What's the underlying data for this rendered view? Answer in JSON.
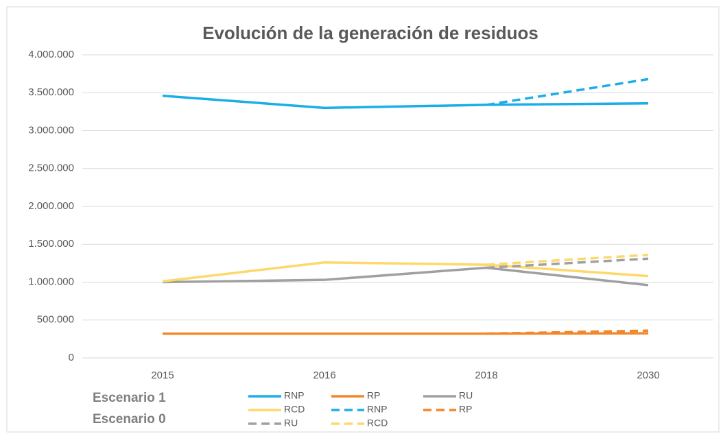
{
  "chart_data": {
    "type": "line",
    "title": "Evolución de la generación de residuos",
    "categories": [
      "2015",
      "2016",
      "2018",
      "2030"
    ],
    "ylim": [
      0,
      4000000
    ],
    "yticks": [
      0,
      {
        "value": 500000,
        "label": "500.000"
      },
      {
        "value": 1000000,
        "label": "1.000.000"
      },
      {
        "value": 1500000,
        "label": "1.500.000"
      },
      {
        "value": 2000000,
        "label": "2.000.000"
      },
      {
        "value": 2500000,
        "label": "2.500.000"
      },
      {
        "value": 3000000,
        "label": "3.000.000"
      },
      {
        "value": 3500000,
        "label": "3.500.000"
      },
      {
        "value": 4000000,
        "label": "4.000.000"
      }
    ],
    "grid": true,
    "legend_groups": [
      "Escenario 1",
      "Escenario 0"
    ],
    "series": [
      {
        "name": "RNP",
        "color": "#1aaee9",
        "dashed": false,
        "values": [
          3460000,
          3300000,
          3340000,
          3360000
        ]
      },
      {
        "name": "RP",
        "color": "#f4862a",
        "dashed": false,
        "values": [
          320000,
          320000,
          320000,
          325000
        ]
      },
      {
        "name": "RU",
        "color": "#a0a0a0",
        "dashed": false,
        "values": [
          1000000,
          1030000,
          1190000,
          960000
        ]
      },
      {
        "name": "RCD",
        "color": "#fdd86a",
        "dashed": false,
        "values": [
          1010000,
          1260000,
          1230000,
          1080000
        ]
      },
      {
        "name": "RNP",
        "color": "#1aaee9",
        "dashed": true,
        "values": [
          null,
          null,
          3340000,
          3680000
        ]
      },
      {
        "name": "RP",
        "color": "#f4862a",
        "dashed": true,
        "values": [
          null,
          null,
          320000,
          360000
        ]
      },
      {
        "name": "RU",
        "color": "#a0a0a0",
        "dashed": true,
        "values": [
          null,
          null,
          1190000,
          1310000
        ]
      },
      {
        "name": "RCD",
        "color": "#fdd86a",
        "dashed": true,
        "values": [
          null,
          null,
          1230000,
          1360000
        ]
      }
    ]
  }
}
